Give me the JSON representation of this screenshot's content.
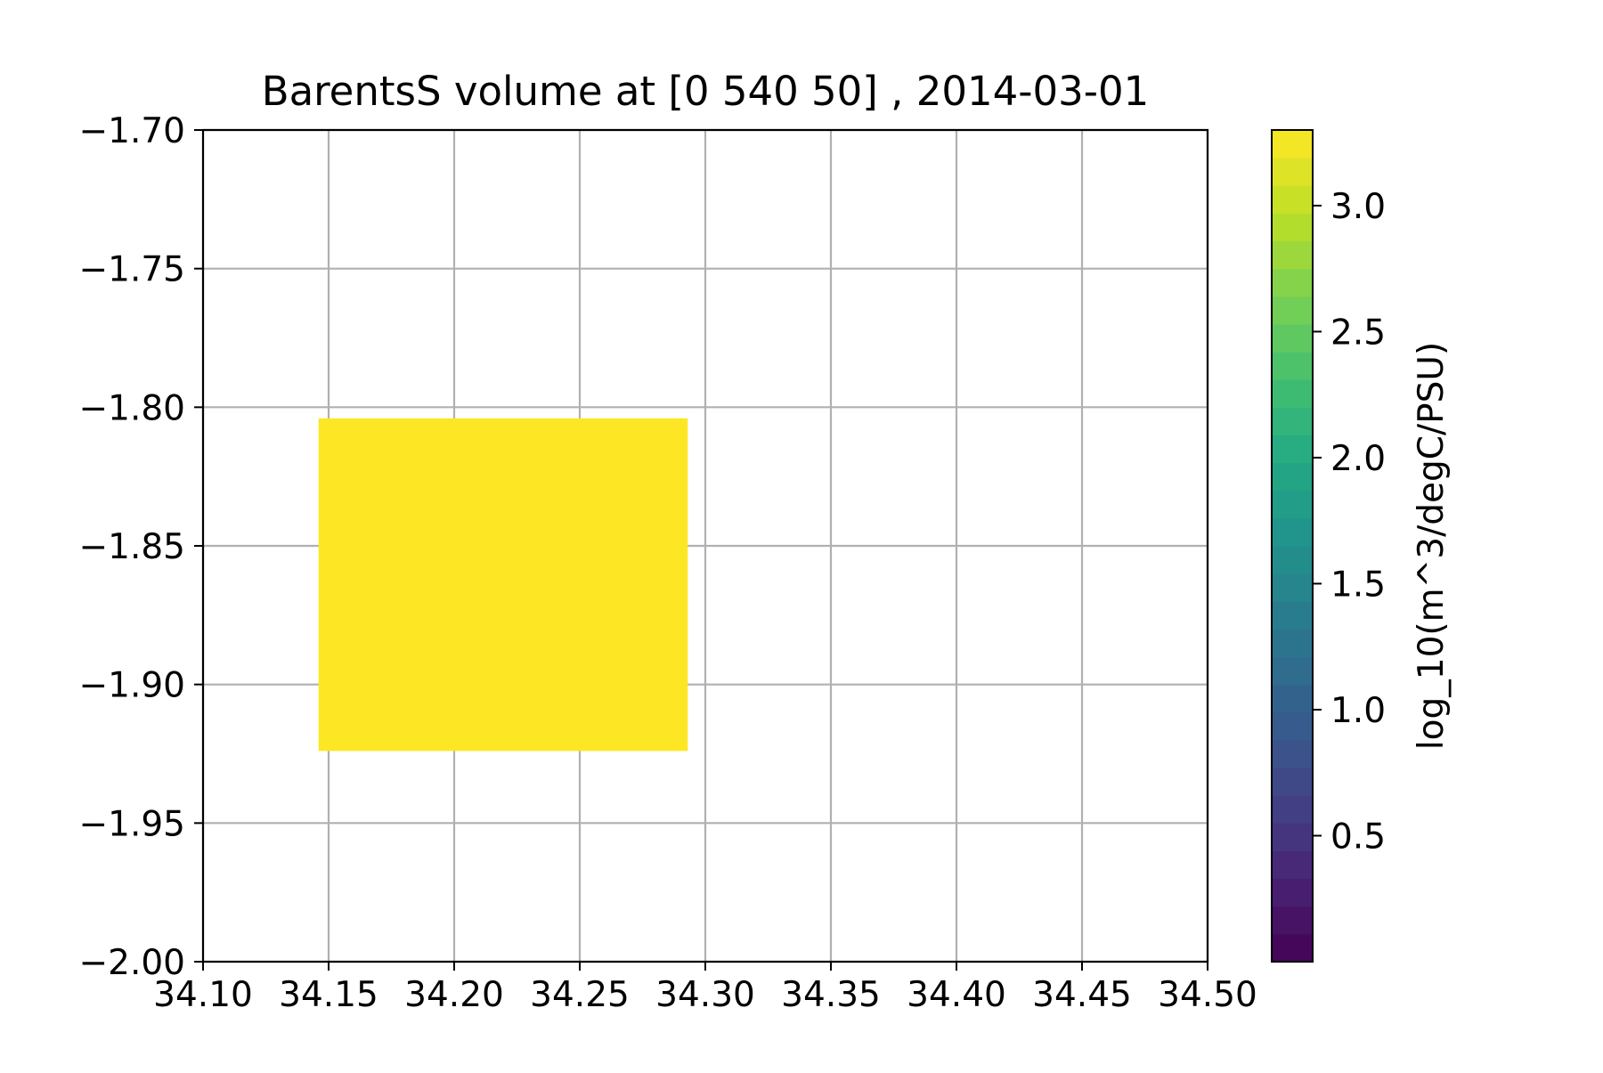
{
  "chart_data": {
    "type": "heatmap",
    "title": "BarentsS volume at [0 540 50] , 2014-03-01",
    "xlabel": "",
    "ylabel": "",
    "xlim": [
      34.1,
      34.5
    ],
    "ylim": [
      -2.0,
      -1.7
    ],
    "xticks": [
      34.1,
      34.15,
      34.2,
      34.25,
      34.3,
      34.35,
      34.4,
      34.45,
      34.5
    ],
    "xtick_labels": [
      "34.10",
      "34.15",
      "34.20",
      "34.25",
      "34.30",
      "34.35",
      "34.40",
      "34.45",
      "34.50"
    ],
    "yticks": [
      -1.7,
      -1.75,
      -1.8,
      -1.85,
      -1.9,
      -1.95,
      -2.0
    ],
    "ytick_labels": [
      "−1.70",
      "−1.75",
      "−1.80",
      "−1.85",
      "−1.90",
      "−1.95",
      "−2.00"
    ],
    "grid": true,
    "cells": [
      {
        "x0": 34.146,
        "x1": 34.293,
        "y0": -1.924,
        "y1": -1.804,
        "value": 3.3
      }
    ],
    "colorbar": {
      "label": "log_10(m^3/degC/PSU)",
      "min": 0.0,
      "max": 3.3,
      "levels": 30,
      "ticks": [
        0.5,
        1.0,
        1.5,
        2.0,
        2.5,
        3.0
      ],
      "tick_labels": [
        "0.5",
        "1.0",
        "1.5",
        "2.0",
        "2.5",
        "3.0"
      ],
      "colormap": "viridis"
    },
    "colors": {
      "grid": "#b0b0b0",
      "axis": "#000000",
      "cell": "#fde725"
    }
  }
}
